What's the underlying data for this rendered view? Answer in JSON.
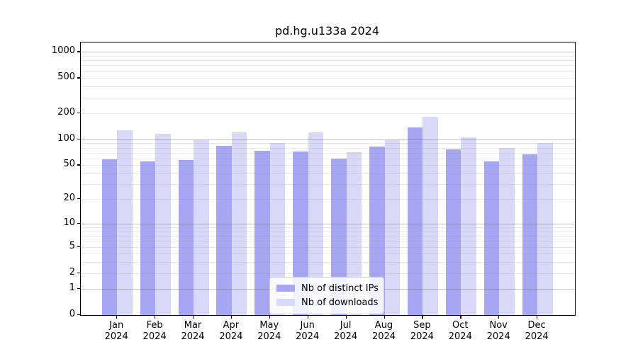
{
  "title": "pd.hg.u133a 2024",
  "chart_data": {
    "type": "bar",
    "title": "pd.hg.u133a 2024",
    "categories": [
      "Jan",
      "Feb",
      "Mar",
      "Apr",
      "May",
      "Jun",
      "Jul",
      "Aug",
      "Sep",
      "Oct",
      "Nov",
      "Dec"
    ],
    "x_year_label": "2024",
    "series": [
      {
        "name": "Nb of distinct IPs",
        "color": "#a6a6f2",
        "values": [
          59,
          55,
          58,
          84,
          73,
          72,
          60,
          83,
          137,
          77,
          55,
          67
        ]
      },
      {
        "name": "Nb of downloads",
        "color": "#d8d8f8",
        "values": [
          127,
          115,
          97,
          119,
          91,
          119,
          71,
          98,
          180,
          106,
          79,
          90
        ]
      }
    ],
    "y_axis": {
      "scale": "log10(1+y)",
      "tick_values": [
        1000,
        500,
        200,
        100,
        50,
        20,
        10,
        5,
        2,
        1,
        0
      ],
      "tick_labels": [
        "1000",
        "500",
        "200",
        "100",
        "50",
        "20",
        "10",
        "5",
        "2",
        "1",
        "0"
      ],
      "ylim": [
        0,
        1280
      ],
      "grid": true,
      "major_grid_values": [
        1,
        10,
        100,
        1000
      ]
    },
    "legend_position": "lower center",
    "grid_on": true
  },
  "legend": {
    "items": [
      {
        "label": "Nb of distinct IPs",
        "color": "#a6a6f2"
      },
      {
        "label": "Nb of downloads",
        "color": "#d8d8f8"
      }
    ]
  },
  "colors": {
    "series_ips": "#a6a6f2",
    "series_downloads": "#d8d8f8",
    "axis": "#000000",
    "major_grid": "#bcbcbc",
    "minor_grid": "#e8e8e8",
    "background": "#ffffff"
  }
}
